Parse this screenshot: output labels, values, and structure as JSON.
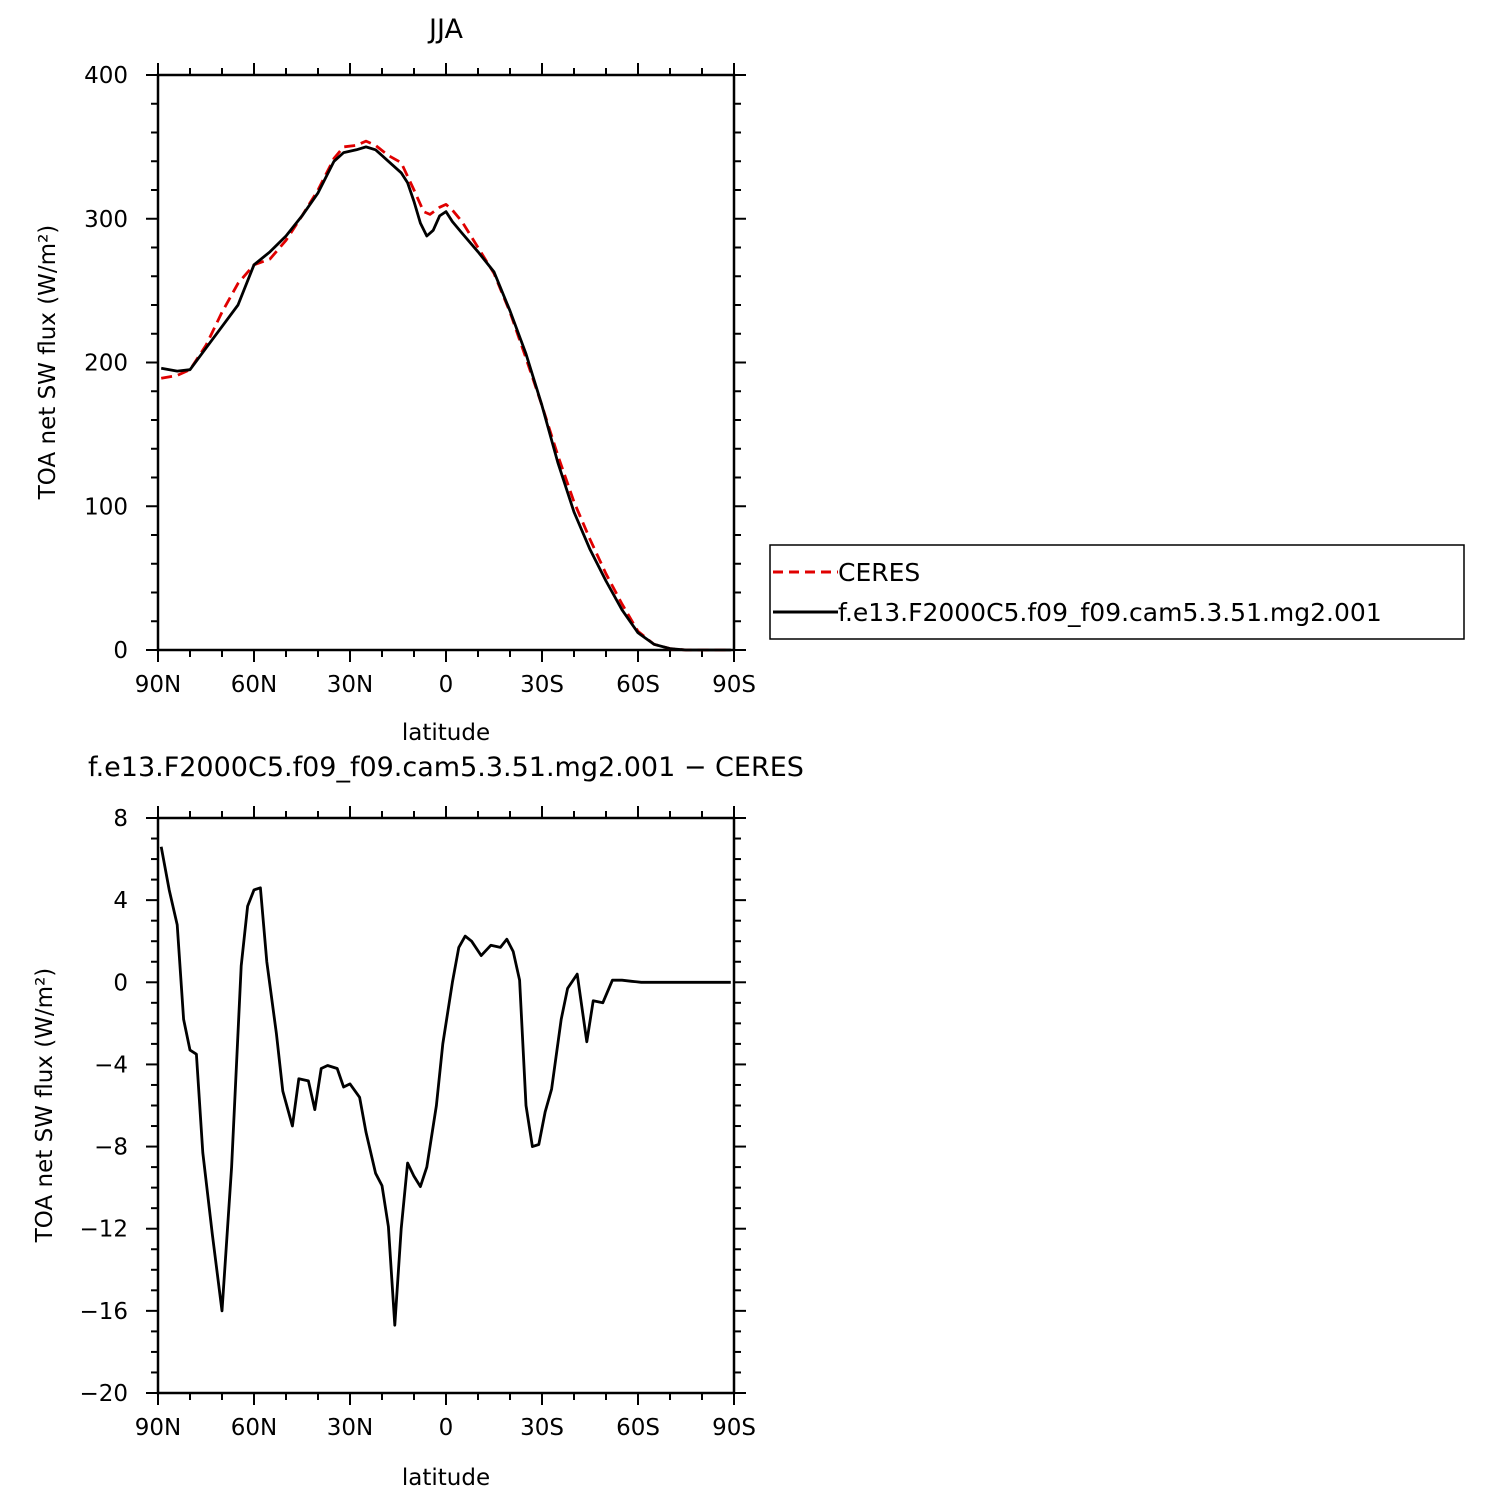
{
  "chart_data": [
    {
      "type": "line",
      "title": "JJA",
      "xlabel": "latitude",
      "ylabel": "TOA net SW flux (W/m²)",
      "xlim": [
        90,
        -90
      ],
      "ylim": [
        0,
        400
      ],
      "xticks": [
        90,
        60,
        30,
        0,
        -30,
        -60,
        -90
      ],
      "xtick_labels": [
        "90N",
        "60N",
        "30N",
        "0",
        "30S",
        "60S",
        "90S"
      ],
      "yticks": [
        0,
        100,
        200,
        300,
        400
      ],
      "ytick_labels": [
        "0",
        "100",
        "200",
        "300",
        "400"
      ],
      "legend": {
        "placement": "right",
        "entries": [
          "CERES",
          "f.e13.F2000C5.f09_f09.cam5.3.51.mg2.001"
        ]
      },
      "series": [
        {
          "name": "CERES",
          "color": "#e00000",
          "dash": "dashed",
          "x": [
            89,
            84,
            80,
            75,
            70,
            65,
            60,
            55,
            50,
            45,
            40,
            35,
            32,
            28,
            25,
            22,
            18,
            14,
            10,
            7,
            5,
            2,
            0,
            -2,
            -5,
            -10,
            -15,
            -20,
            -25,
            -30,
            -35,
            -40,
            -45,
            -50,
            -55,
            -60,
            -65,
            -70,
            -75,
            -80,
            -85,
            -89
          ],
          "y": [
            189,
            191,
            195,
            212,
            235,
            255,
            268,
            272,
            285,
            302,
            320,
            342,
            350,
            351,
            354,
            351,
            344,
            339,
            320,
            305,
            303,
            308,
            310,
            306,
            298,
            280,
            262,
            235,
            203,
            170,
            135,
            103,
            77,
            53,
            32,
            13,
            4,
            1,
            0,
            0,
            0,
            0
          ]
        },
        {
          "name": "f.e13.F2000C5.f09_f09.cam5.3.51.mg2.001",
          "color": "#000000",
          "dash": "solid",
          "x": [
            89,
            84,
            80,
            75,
            70,
            65,
            60,
            55,
            50,
            45,
            40,
            35,
            32,
            28,
            25,
            22,
            18,
            14,
            12,
            10,
            8,
            6,
            4,
            2,
            0,
            -2,
            -5,
            -10,
            -15,
            -20,
            -25,
            -30,
            -35,
            -40,
            -45,
            -50,
            -55,
            -60,
            -65,
            -70,
            -75,
            -80,
            -85,
            -89
          ],
          "y": [
            196,
            194,
            195,
            210,
            225,
            240,
            268,
            277,
            288,
            302,
            318,
            340,
            346,
            348,
            350,
            348,
            340,
            332,
            325,
            312,
            297,
            288,
            292,
            302,
            305,
            298,
            290,
            277,
            263,
            236,
            206,
            170,
            130,
            96,
            70,
            48,
            28,
            12,
            4,
            1,
            0,
            0,
            0,
            0
          ]
        }
      ]
    },
    {
      "type": "line",
      "title": "f.e13.F2000C5.f09_f09.cam5.3.51.mg2.001 − CERES",
      "xlabel": "latitude",
      "ylabel": "TOA net SW flux (W/m²)",
      "xlim": [
        90,
        -90
      ],
      "ylim": [
        -20,
        8
      ],
      "xticks": [
        90,
        60,
        30,
        0,
        -30,
        -60,
        -90
      ],
      "xtick_labels": [
        "90N",
        "60N",
        "30N",
        "0",
        "30S",
        "60S",
        "90S"
      ],
      "yticks": [
        8,
        4,
        0,
        -4,
        -8,
        -12,
        -16,
        -20
      ],
      "ytick_labels": [
        "8",
        "4",
        "0",
        "−4",
        "−8",
        "−12",
        "−16",
        "−20"
      ],
      "series": [
        {
          "color": "#000000",
          "dash": "solid",
          "x": [
            89,
            86.5,
            84,
            82,
            80,
            78,
            76,
            73,
            70,
            67,
            64,
            62,
            60,
            58,
            56,
            53,
            51,
            48,
            46,
            43,
            41,
            39,
            37,
            34,
            32,
            30,
            27,
            25,
            22,
            20,
            18,
            16,
            14,
            12,
            10,
            8,
            6,
            3,
            1,
            -2,
            -4,
            -6,
            -8,
            -11,
            -14,
            -17,
            -19,
            -21,
            -23,
            -25,
            -27,
            -29,
            -31,
            -33,
            -36,
            -38,
            -41,
            -44,
            -46,
            -49,
            -52,
            -55,
            -58,
            -61,
            -63,
            -65,
            -67,
            -69,
            -72,
            -74,
            -77,
            -79,
            -81,
            -84,
            -86,
            -89
          ],
          "y": [
            6.6,
            4.5,
            2.8,
            -1.8,
            -3.3,
            -3.5,
            -8.3,
            -12.3,
            -16,
            -9,
            0.8,
            3.7,
            4.5,
            4.6,
            1,
            -2.5,
            -5.3,
            -7,
            -4.7,
            -4.8,
            -6.2,
            -4.2,
            -4.05,
            -4.2,
            -5.1,
            -4.95,
            -5.6,
            -7.3,
            -9.3,
            -9.9,
            -11.9,
            -16.7,
            -12,
            -8.8,
            -9.45,
            -9.95,
            -9,
            -6,
            -3,
            0,
            1.7,
            2.25,
            2.0,
            1.3,
            1.8,
            1.7,
            2.1,
            1.5,
            0.1,
            -6,
            -8,
            -7.9,
            -6.3,
            -5.2,
            -1.8,
            -0.3,
            0.4,
            -2.9,
            -0.9,
            -1.0,
            0.1,
            0.1,
            0.05,
            0,
            0,
            0,
            0,
            0,
            0,
            0,
            0,
            0,
            0,
            0,
            0,
            0
          ]
        }
      ]
    }
  ]
}
